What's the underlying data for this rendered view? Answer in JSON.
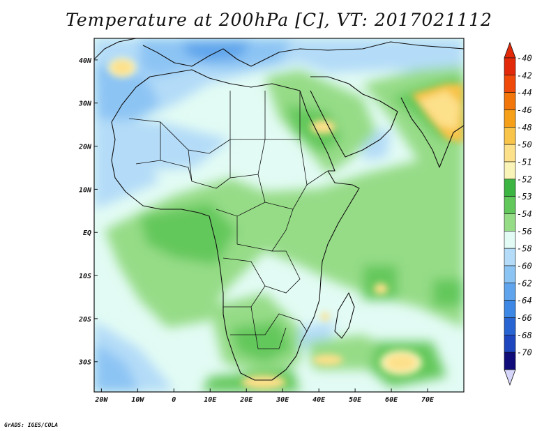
{
  "title": "Temperature at 200hPa [C], VT: 2017021112",
  "credit": "GrADS: IGES/COLA",
  "map": {
    "lon_range": [
      -22,
      80
    ],
    "lat_range": [
      -37,
      45
    ],
    "lon_labels": [
      "20W",
      "10W",
      "0",
      "10E",
      "20E",
      "30E",
      "40E",
      "50E",
      "60E",
      "70E"
    ],
    "lon_values": [
      -20,
      -10,
      0,
      10,
      20,
      30,
      40,
      50,
      60,
      70
    ],
    "lat_labels": [
      "40N",
      "30N",
      "20N",
      "10N",
      "EQ",
      "10S",
      "20S",
      "30S"
    ],
    "lat_values": [
      40,
      30,
      20,
      10,
      0,
      -10,
      -20,
      -30
    ]
  },
  "colorbar": {
    "labels": [
      "-40",
      "-42",
      "-44",
      "-46",
      "-48",
      "-50",
      "-51",
      "-52",
      "-53",
      "-54",
      "-56",
      "-58",
      "-60",
      "-62",
      "-64",
      "-66",
      "-68",
      "-70"
    ],
    "colors": [
      "#e22a0a",
      "#f04a0a",
      "#f2760a",
      "#f5a018",
      "#f8c44a",
      "#fde08a",
      "#fbf4b8",
      "#3cb543",
      "#63c85c",
      "#96dc87",
      "#e2fbf4",
      "#b4dcf8",
      "#8cc4f4",
      "#5fa4ec",
      "#3c88e4",
      "#2864d2",
      "#1e46be",
      "#100c7a"
    ],
    "top_arrow_color": "#e22a0a",
    "bottom_arrow_color": "#d6d6fa"
  }
}
